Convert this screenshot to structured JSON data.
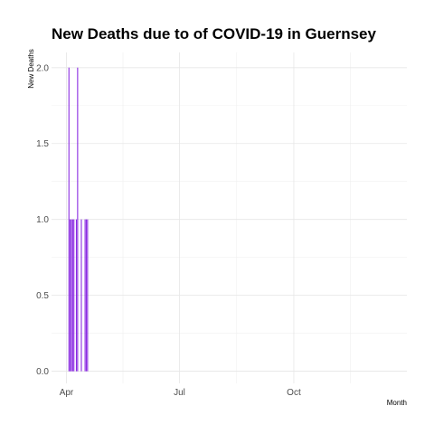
{
  "chart_data": {
    "type": "bar",
    "title": "New Deaths due to of COVID-19 in Guernsey",
    "xlabel": "Month",
    "ylabel": "New Deaths",
    "x_ticks": [
      {
        "label": "Apr",
        "date": "2020-04-01"
      },
      {
        "label": "Jul",
        "date": "2020-07-01"
      },
      {
        "label": "Oct",
        "date": "2020-10-01"
      }
    ],
    "y_ticks": [
      "0.0",
      "0.5",
      "1.0",
      "1.5",
      "2.0"
    ],
    "xlim": [
      "2020-03-20",
      "2020-12-31"
    ],
    "ylim": [
      -0.08,
      2.1
    ],
    "grid": true,
    "series": [
      {
        "color": "#8a2be2",
        "points": [
          {
            "x": "2020-04-03",
            "y": 2
          },
          {
            "x": "2020-04-04",
            "y": 1
          },
          {
            "x": "2020-04-05",
            "y": 1
          },
          {
            "x": "2020-04-06",
            "y": 1
          },
          {
            "x": "2020-04-07",
            "y": 1
          },
          {
            "x": "2020-04-09",
            "y": 1
          },
          {
            "x": "2020-04-10",
            "y": 2
          },
          {
            "x": "2020-04-13",
            "y": 1
          },
          {
            "x": "2020-04-16",
            "y": 1
          },
          {
            "x": "2020-04-17",
            "y": 1
          },
          {
            "x": "2020-04-18",
            "y": 1
          }
        ]
      }
    ]
  }
}
